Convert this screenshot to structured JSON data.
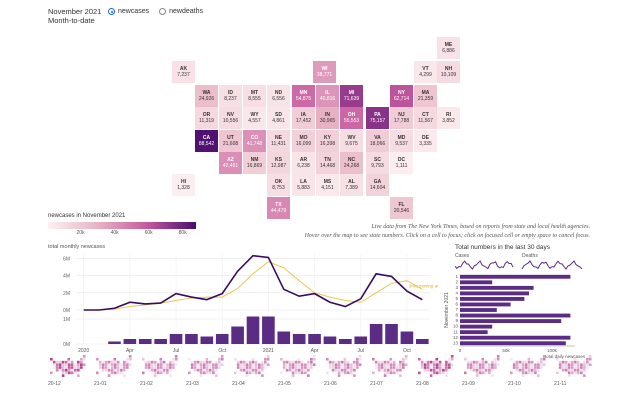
{
  "header": {
    "title": "November 2021",
    "subtitle": "Month-to-date",
    "options": [
      {
        "label": "newcases",
        "selected": true
      },
      {
        "label": "newdeaths",
        "selected": false
      }
    ]
  },
  "map": {
    "states": [
      {
        "abbr": "ME",
        "value": "6,886"
      },
      {
        "abbr": "AK",
        "value": "7,237"
      },
      {
        "abbr": "VT",
        "value": "4,299"
      },
      {
        "abbr": "NH",
        "value": "10,109"
      },
      {
        "abbr": "WI",
        "value": "38,771"
      },
      {
        "abbr": "WA",
        "value": "24,926"
      },
      {
        "abbr": "ID",
        "value": "8,237"
      },
      {
        "abbr": "MT",
        "value": "8,555"
      },
      {
        "abbr": "ND",
        "value": "6,556"
      },
      {
        "abbr": "MN",
        "value": "54,875"
      },
      {
        "abbr": "IL",
        "value": "40,816"
      },
      {
        "abbr": "MI",
        "value": "71,639"
      },
      {
        "abbr": "NY",
        "value": "62,714"
      },
      {
        "abbr": "MA",
        "value": "21,359"
      },
      {
        "abbr": "OR",
        "value": "11,319"
      },
      {
        "abbr": "NV",
        "value": "10,556"
      },
      {
        "abbr": "WY",
        "value": "4,557"
      },
      {
        "abbr": "SD",
        "value": "4,861"
      },
      {
        "abbr": "IA",
        "value": "17,452"
      },
      {
        "abbr": "IN",
        "value": "30,965"
      },
      {
        "abbr": "OH",
        "value": "55,553"
      },
      {
        "abbr": "PA",
        "value": "75,157"
      },
      {
        "abbr": "NJ",
        "value": "17,788"
      },
      {
        "abbr": "CT",
        "value": "11,567"
      },
      {
        "abbr": "RI",
        "value": "3,852"
      },
      {
        "abbr": "CA",
        "value": "88,542"
      },
      {
        "abbr": "UT",
        "value": "21,608"
      },
      {
        "abbr": "CO",
        "value": "41,748"
      },
      {
        "abbr": "NE",
        "value": "11,431"
      },
      {
        "abbr": "MO",
        "value": "16,099"
      },
      {
        "abbr": "KY",
        "value": "16,398"
      },
      {
        "abbr": "WV",
        "value": "9,675"
      },
      {
        "abbr": "VA",
        "value": "18,066"
      },
      {
        "abbr": "MD",
        "value": "9,537"
      },
      {
        "abbr": "DE",
        "value": "3,335"
      },
      {
        "abbr": "AZ",
        "value": "42,451"
      },
      {
        "abbr": "NM",
        "value": "16,869"
      },
      {
        "abbr": "KS",
        "value": "12,987"
      },
      {
        "abbr": "AR",
        "value": "6,238"
      },
      {
        "abbr": "TN",
        "value": "14,468"
      },
      {
        "abbr": "NC",
        "value": "24,268"
      },
      {
        "abbr": "SC",
        "value": "9,793"
      },
      {
        "abbr": "DC",
        "value": "1,111"
      },
      {
        "abbr": "OK",
        "value": "8,753"
      },
      {
        "abbr": "LA",
        "value": "5,883"
      },
      {
        "abbr": "MS",
        "value": "4,151"
      },
      {
        "abbr": "AL",
        "value": "7,389"
      },
      {
        "abbr": "GA",
        "value": "14,604"
      },
      {
        "abbr": "HI",
        "value": "1,328"
      },
      {
        "abbr": "TX",
        "value": "44,479"
      },
      {
        "abbr": "FL",
        "value": "20,546"
      }
    ]
  },
  "legend": {
    "title": "newcases in November 2021",
    "ticks": [
      "20k",
      "40k",
      "60k",
      "80k"
    ]
  },
  "note": {
    "line1": "Live data from The New York Times, based on reports from state and local health agencies.",
    "line2": "Hover over the map to see state numbers. Click on a cell to focus; click on focused cell or empty space to cancel focus."
  },
  "monthly_chart": {
    "title": "total monthly newcases",
    "ylabels": [
      "6M",
      "4M",
      "2M",
      "0M"
    ],
    "bar_ylabels": [
      "1M",
      "0M"
    ],
    "xlabels": [
      "2020",
      "Apr",
      "Jul",
      "Oct",
      "2021",
      "Apr",
      "Jul",
      "Oct"
    ],
    "annotation": "3mo moving avg"
  },
  "right_panel": {
    "title": "Total numbers in the last 30 days",
    "spark_cases": "Cases",
    "spark_deaths": "Deaths",
    "ylabel": "November 2021",
    "ylabels": [
      "1",
      "2",
      "3",
      "4",
      "5",
      "6",
      "7",
      "8",
      "9",
      "10",
      "11",
      "12",
      "13"
    ],
    "xlabels": [
      "0",
      "50k",
      "100k"
    ],
    "xlabel": "total daily newcases"
  },
  "minis": {
    "labels": [
      "20-12",
      "21-01",
      "21-02",
      "21-03",
      "21-04",
      "21-05",
      "21-06",
      "21-07",
      "21-08",
      "21-09",
      "21-10",
      "21-11"
    ]
  },
  "chart_data": [
    {
      "type": "line",
      "title": "total monthly newcases",
      "xlabel": "",
      "ylabel": "",
      "x": [
        "2020-01",
        "2020-02",
        "2020-03",
        "2020-04",
        "2020-05",
        "2020-06",
        "2020-07",
        "2020-08",
        "2020-09",
        "2020-10",
        "2020-11",
        "2020-12",
        "2021-01",
        "2021-02",
        "2021-03",
        "2021-04",
        "2021-05",
        "2021-06",
        "2021-07",
        "2021-08",
        "2021-09",
        "2021-10",
        "2021-11"
      ],
      "series": [
        {
          "name": "",
          "values": [
            0.0,
            0.0,
            0.2,
            0.9,
            0.7,
            0.8,
            1.9,
            1.5,
            1.2,
            1.9,
            4.5,
            6.3,
            6.1,
            2.4,
            1.6,
            1.9,
            0.9,
            0.4,
            1.3,
            4.2,
            3.9,
            2.2,
            1.2
          ]
        },
        {
          "name": "3mo moving avg",
          "values": [
            0.0,
            0.0,
            0.1,
            0.4,
            0.6,
            0.8,
            1.1,
            1.4,
            1.5,
            1.5,
            2.5,
            4.2,
            5.6,
            4.9,
            3.4,
            2.0,
            1.5,
            1.1,
            0.9,
            2.0,
            3.1,
            3.4,
            2.4
          ]
        }
      ],
      "ylim": [
        0,
        6.5
      ],
      "grid": true
    },
    {
      "type": "bar",
      "title": "",
      "categories": [
        "2020-01",
        "2020-02",
        "2020-03",
        "2020-04",
        "2020-05",
        "2020-06",
        "2020-07",
        "2020-08",
        "2020-09",
        "2020-10",
        "2020-11",
        "2020-12",
        "2021-01",
        "2021-02",
        "2021-03",
        "2021-04",
        "2021-05",
        "2021-06",
        "2021-07",
        "2021-08",
        "2021-09",
        "2021-10",
        "2021-11"
      ],
      "values": [
        0.0,
        0.0,
        0.1,
        0.2,
        0.2,
        0.2,
        0.4,
        0.4,
        0.3,
        0.4,
        0.7,
        1.1,
        1.1,
        0.5,
        0.4,
        0.4,
        0.3,
        0.2,
        0.3,
        0.8,
        0.8,
        0.5,
        0.2
      ],
      "ylim": [
        0,
        1.2
      ]
    },
    {
      "type": "bar",
      "title": "Total numbers in the last 30 days",
      "categories": [
        "1",
        "2",
        "3",
        "4",
        "5",
        "6",
        "7",
        "8",
        "9",
        "10",
        "11",
        "12",
        "13"
      ],
      "values": [
        120,
        35,
        80,
        75,
        70,
        55,
        40,
        120,
        110,
        35,
        30,
        120,
        115
      ],
      "xlim": [
        0,
        125
      ],
      "xlabel": "total daily newcases",
      "ylabel": "November 2021"
    }
  ]
}
